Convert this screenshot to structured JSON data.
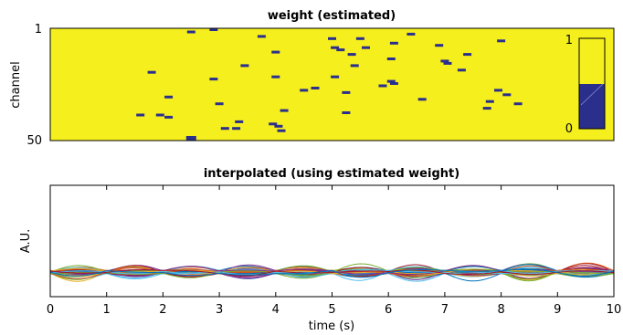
{
  "chart_data": [
    {
      "type": "heatmap",
      "title": "weight (estimated)",
      "xlabel": "",
      "ylabel": "channel",
      "ytick_labels": [
        "1",
        "50"
      ],
      "xlim": [
        0,
        10
      ],
      "ylim": [
        1,
        50
      ],
      "grid": false,
      "background_value": 1,
      "colors": {
        "high": "#f5ef1e",
        "low": "#2b2f8c"
      },
      "colorbar": {
        "ticks": [
          "1",
          "0"
        ],
        "placement": "right-inside",
        "fill_fraction": 0.5
      },
      "dips": [
        {
          "channel": 1,
          "t": 2.9
        },
        {
          "channel": 2,
          "t": 2.5
        },
        {
          "channel": 3,
          "t": 6.4
        },
        {
          "channel": 4,
          "t": 3.75
        },
        {
          "channel": 5,
          "t": 5.0
        },
        {
          "channel": 5,
          "t": 5.5
        },
        {
          "channel": 6,
          "t": 8.0
        },
        {
          "channel": 7,
          "t": 6.1
        },
        {
          "channel": 8,
          "t": 6.9
        },
        {
          "channel": 9,
          "t": 5.05
        },
        {
          "channel": 9,
          "t": 5.6
        },
        {
          "channel": 10,
          "t": 5.15
        },
        {
          "channel": 11,
          "t": 4.0
        },
        {
          "channel": 12,
          "t": 5.35
        },
        {
          "channel": 12,
          "t": 7.4
        },
        {
          "channel": 14,
          "t": 6.05
        },
        {
          "channel": 15,
          "t": 7.0
        },
        {
          "channel": 16,
          "t": 7.05
        },
        {
          "channel": 17,
          "t": 3.45
        },
        {
          "channel": 17,
          "t": 5.4
        },
        {
          "channel": 19,
          "t": 7.3
        },
        {
          "channel": 20,
          "t": 1.8
        },
        {
          "channel": 22,
          "t": 4.0
        },
        {
          "channel": 22,
          "t": 5.05
        },
        {
          "channel": 23,
          "t": 2.9
        },
        {
          "channel": 24,
          "t": 6.05
        },
        {
          "channel": 25,
          "t": 6.1
        },
        {
          "channel": 26,
          "t": 5.9
        },
        {
          "channel": 27,
          "t": 4.7
        },
        {
          "channel": 28,
          "t": 4.5
        },
        {
          "channel": 28,
          "t": 7.95
        },
        {
          "channel": 29,
          "t": 5.25
        },
        {
          "channel": 30,
          "t": 8.1
        },
        {
          "channel": 31,
          "t": 2.1
        },
        {
          "channel": 32,
          "t": 6.6
        },
        {
          "channel": 33,
          "t": 7.8
        },
        {
          "channel": 34,
          "t": 3.0
        },
        {
          "channel": 34,
          "t": 8.3
        },
        {
          "channel": 36,
          "t": 7.75
        },
        {
          "channel": 37,
          "t": 4.15
        },
        {
          "channel": 38,
          "t": 5.25
        },
        {
          "channel": 39,
          "t": 1.6
        },
        {
          "channel": 39,
          "t": 1.95
        },
        {
          "channel": 40,
          "t": 2.1
        },
        {
          "channel": 42,
          "t": 3.35
        },
        {
          "channel": 43,
          "t": 3.95
        },
        {
          "channel": 44,
          "t": 4.05
        },
        {
          "channel": 45,
          "t": 3.3
        },
        {
          "channel": 45,
          "t": 3.1
        },
        {
          "channel": 46,
          "t": 4.1
        },
        {
          "channel": 50,
          "t": 2.5
        }
      ]
    },
    {
      "type": "line",
      "title": "interpolated (using estimated weight)",
      "xlabel": "time (s)",
      "ylabel": "A.U.",
      "xlim": [
        0,
        10
      ],
      "ylim": [
        -1.0,
        4.0
      ],
      "x_ticks": [
        0,
        1,
        2,
        3,
        4,
        5,
        6,
        7,
        8,
        9,
        10
      ],
      "grid": false,
      "legend": "none",
      "series_count": 50,
      "colors": [
        "#0072bd",
        "#d95319",
        "#edb120",
        "#7e2f8e",
        "#77ac30",
        "#4dbeee",
        "#a2142f"
      ],
      "nodes_t": [
        0,
        1,
        2,
        3,
        4,
        5,
        6,
        7,
        8,
        9,
        10
      ],
      "value_range": [
        -0.8,
        0.8
      ]
    }
  ]
}
